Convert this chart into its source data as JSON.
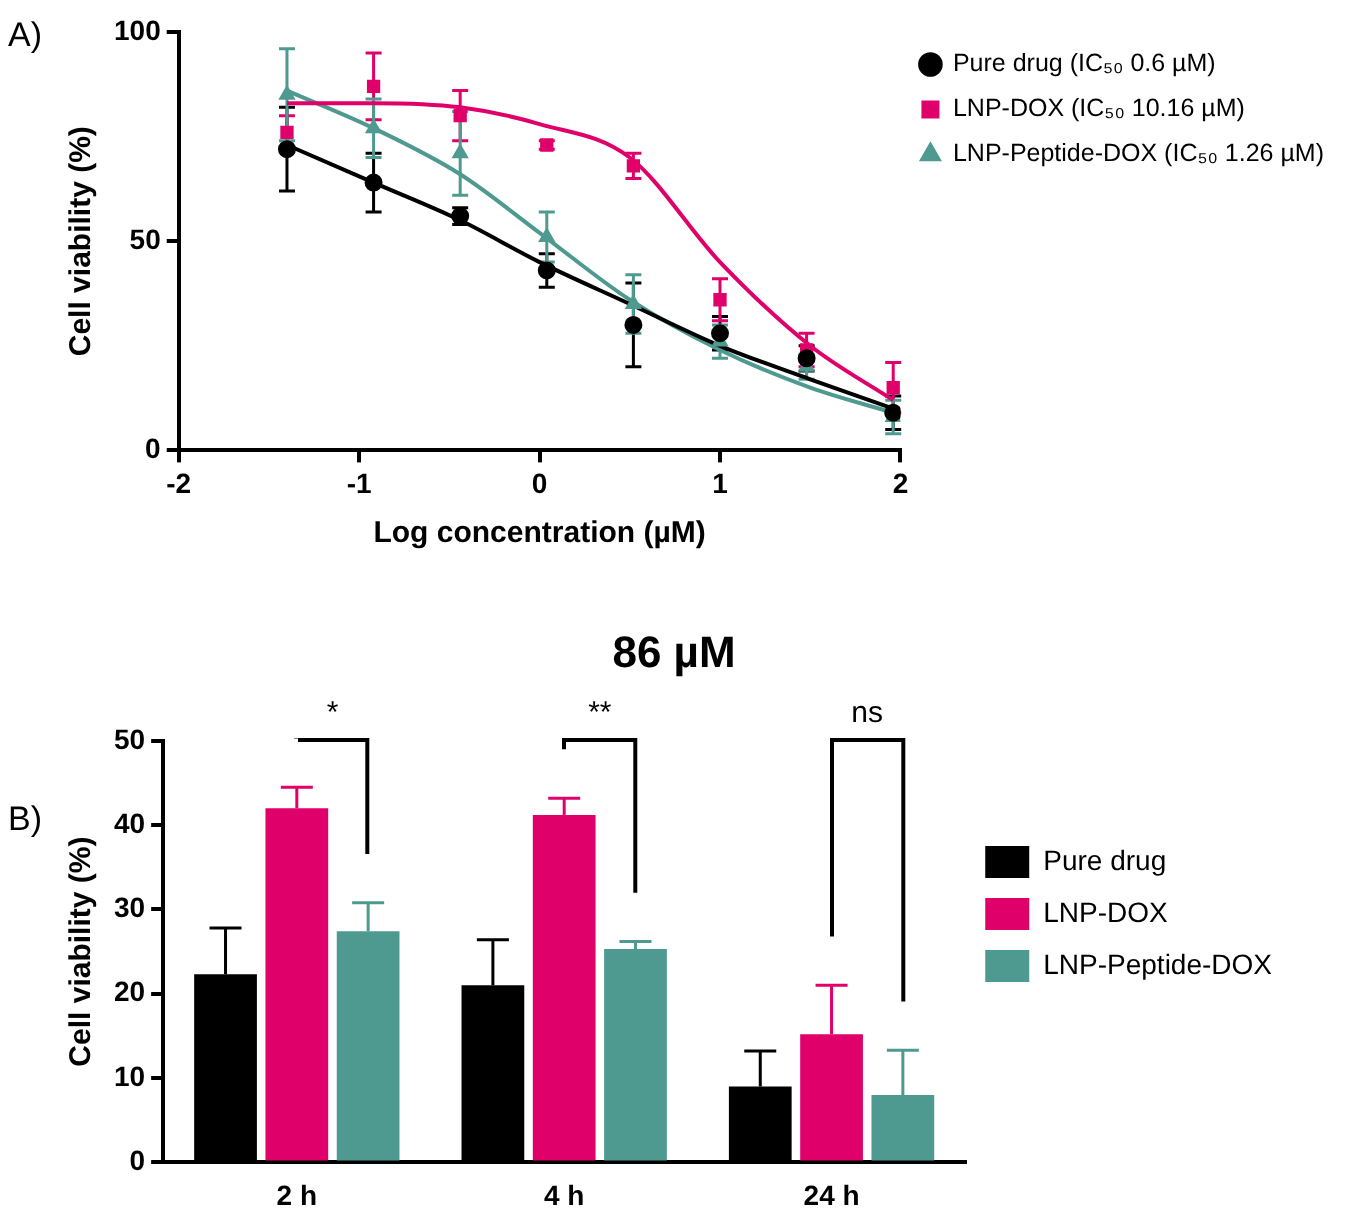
{
  "chart_data": [
    {
      "type": "scatter",
      "xlabel": "Log concentration (µM)",
      "ylabel": "Cell viability (%)",
      "annotations": [
        "A)"
      ],
      "xlim": [
        -2,
        2
      ],
      "xticks": [
        -2,
        -1,
        0,
        1,
        2
      ],
      "ylim": [
        0,
        100
      ],
      "yticks": [
        0,
        50,
        100
      ],
      "grid": false,
      "legend": "top right",
      "x": [
        -1.4,
        -0.92,
        -0.44,
        0.04,
        0.52,
        1.0,
        1.48,
        1.96
      ],
      "series": [
        {
          "name": "Pure drug (IC₅₀ 0.6 µM)",
          "type": "scatter",
          "marker": "circle",
          "color": "#000000",
          "values": [
            72,
            64,
            56,
            43,
            30,
            28,
            22,
            9
          ],
          "errors": [
            10,
            7,
            2,
            4,
            10,
            4,
            3,
            4
          ]
        },
        {
          "name": "LNP-DOX (IC₅₀ 10.16 µM)",
          "type": "scatter",
          "marker": "square",
          "color": "#e0006a",
          "values": [
            76,
            87,
            80,
            73,
            68,
            36,
            24,
            15
          ],
          "errors": [
            4,
            8,
            6,
            1,
            3,
            5,
            4,
            6
          ]
        },
        {
          "name": "LNP-Peptide-DOX (IC₅₀ 1.26 µM)",
          "type": "scatter",
          "marker": "triangle",
          "color": "#4f9a90",
          "values": [
            85,
            77,
            71,
            51,
            35,
            26,
            20,
            8
          ],
          "errors": [
            11,
            7,
            10,
            6,
            7,
            4,
            3,
            4
          ]
        },
        {
          "type": "line",
          "marker": "none",
          "color": "#000000",
          "x": [
            -1.4,
            -0.92,
            -0.44,
            0,
            0.5,
            1,
            1.5,
            1.96
          ],
          "values": [
            73,
            64,
            55,
            45,
            35,
            25,
            17,
            10
          ]
        },
        {
          "type": "line",
          "marker": "none",
          "color": "#e0006a",
          "x": [
            -1.4,
            -0.92,
            -0.44,
            0,
            0.5,
            1,
            1.5,
            1.96
          ],
          "values": [
            83,
            83,
            82,
            78,
            70,
            45,
            25,
            12
          ]
        },
        {
          "type": "line",
          "marker": "none",
          "color": "#4f9a90",
          "x": [
            -1.4,
            -0.92,
            -0.44,
            0,
            0.5,
            1,
            1.5,
            1.96
          ],
          "values": [
            86,
            77,
            66,
            52,
            36,
            24,
            15,
            9
          ]
        }
      ]
    },
    {
      "type": "bar",
      "title": "86 µM",
      "ylabel": "Cell viability (%)",
      "categories": [
        "2 h",
        "4 h",
        "24 h"
      ],
      "ylim": [
        0,
        50
      ],
      "yticks": [
        0,
        10,
        20,
        30,
        40,
        50
      ],
      "grid": false,
      "legend": "right",
      "annotations": [
        "B)",
        "*",
        "**",
        "ns"
      ],
      "series": [
        {
          "name": "Pure drug",
          "color": "#000000",
          "values": [
            22.3,
            21,
            9
          ],
          "errors": [
            [
              22.3,
              27.8
            ],
            [
              21,
              26.4
            ],
            [
              9,
              13.2
            ]
          ]
        },
        {
          "name": "LNP-DOX",
          "color": "#e0006a",
          "values": [
            42,
            41.2,
            15.2
          ],
          "errors": [
            [
              42,
              44.5
            ],
            [
              41.2,
              43.2
            ],
            [
              15.2,
              21
            ]
          ]
        },
        {
          "name": "LNP-Peptide-DOX",
          "color": "#4f9a90",
          "values": [
            27.4,
            25.3,
            8
          ],
          "errors": [
            [
              27.4,
              30.8
            ],
            [
              25.3,
              26.2
            ],
            [
              8,
              13.3
            ]
          ]
        }
      ]
    }
  ]
}
